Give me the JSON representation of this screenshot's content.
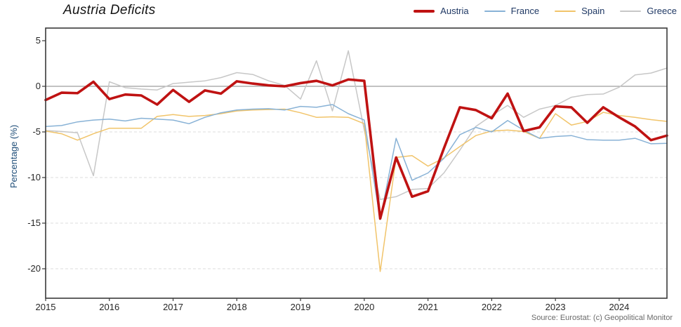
{
  "title": "Austria Deficits",
  "source": "Source: Eurostat: (c) Geopolitical Monitor",
  "y_axis": {
    "label": "Percentage (%)",
    "ticks": [
      5,
      0,
      -5,
      -10,
      -15,
      -20
    ]
  },
  "x_axis": {
    "ticks": [
      "2015",
      "2016",
      "2017",
      "2018",
      "2019",
      "2020",
      "2021",
      "2022",
      "2023",
      "2024"
    ]
  },
  "legend": [
    {
      "label": "Austria",
      "color": "#bf1212",
      "thickness": 4
    },
    {
      "label": "France",
      "color": "#88b2d6",
      "thickness": 2
    },
    {
      "label": "Spain",
      "color": "#f1c46a",
      "thickness": 2
    },
    {
      "label": "Greece",
      "color": "#c7c7c7",
      "thickness": 2
    }
  ],
  "chart_data": {
    "type": "line",
    "title": "Austria Deficits",
    "ylabel": "Percentage (%)",
    "x_start": "2015Q1",
    "x_end": "2024Q4",
    "x_frequency": "quarterly",
    "x_year_ticks": [
      "2015",
      "2016",
      "2017",
      "2018",
      "2019",
      "2020",
      "2021",
      "2022",
      "2023",
      "2024"
    ],
    "ylim": [
      -23.2,
      6.4
    ],
    "y_gridlines_dashed": [
      -5,
      -10,
      -15,
      -20
    ],
    "zero_line": true,
    "legend_position": "top-right",
    "series": [
      {
        "name": "Austria",
        "color": "#bf1212",
        "width": 3.6,
        "values": [
          -1.5,
          -0.7,
          -0.75,
          0.5,
          -1.4,
          -0.9,
          -1.0,
          -2.0,
          -0.4,
          -1.7,
          -0.45,
          -0.8,
          0.55,
          0.3,
          0.1,
          0.0,
          0.35,
          0.6,
          0.1,
          0.75,
          0.6,
          -14.5,
          -7.8,
          -12.1,
          -11.5,
          -6.8,
          -2.3,
          -2.6,
          -3.5,
          -0.8,
          -4.9,
          -4.5,
          -2.2,
          -2.3,
          -4.0,
          -2.3,
          -3.4,
          -4.4,
          -5.9,
          -5.4
        ]
      },
      {
        "name": "France",
        "color": "#88b2d6",
        "width": 1.5,
        "values": [
          -4.4,
          -4.3,
          -3.9,
          -3.7,
          -3.6,
          -3.8,
          -3.5,
          -3.6,
          -3.7,
          -4.1,
          -3.4,
          -2.9,
          -2.6,
          -2.5,
          -2.45,
          -2.6,
          -2.2,
          -2.3,
          -2.0,
          -3.0,
          -3.7,
          -14.6,
          -5.7,
          -10.3,
          -9.5,
          -7.9,
          -5.3,
          -4.5,
          -5.0,
          -3.75,
          -4.8,
          -5.7,
          -5.5,
          -5.4,
          -5.85,
          -5.9,
          -5.9,
          -5.7,
          -6.3,
          -6.25
        ]
      },
      {
        "name": "Spain",
        "color": "#f1c46a",
        "width": 1.5,
        "values": [
          -4.9,
          -5.2,
          -5.9,
          -5.2,
          -4.6,
          -4.6,
          -4.6,
          -3.3,
          -3.1,
          -3.3,
          -3.2,
          -3.0,
          -2.7,
          -2.6,
          -2.55,
          -2.5,
          -2.9,
          -3.4,
          -3.35,
          -3.4,
          -4.1,
          -20.3,
          -7.8,
          -7.6,
          -8.75,
          -7.85,
          -6.6,
          -5.4,
          -4.9,
          -4.8,
          -4.95,
          -5.7,
          -3.0,
          -4.25,
          -3.85,
          -2.85,
          -3.2,
          -3.4,
          -3.65,
          -3.85
        ]
      },
      {
        "name": "Greece",
        "color": "#c7c7c7",
        "width": 1.5,
        "values": [
          -4.85,
          -4.95,
          -5.1,
          -9.8,
          0.5,
          -0.15,
          -0.3,
          -0.4,
          0.3,
          0.45,
          0.6,
          0.95,
          1.5,
          1.3,
          0.6,
          0.1,
          -1.4,
          2.8,
          -2.7,
          3.9,
          -4.8,
          -12.4,
          -12.1,
          -11.3,
          -11.2,
          -9.5,
          -7.0,
          -4.4,
          -3.2,
          -2.1,
          -3.4,
          -2.5,
          -2.1,
          -1.2,
          -0.9,
          -0.85,
          -0.1,
          1.25,
          1.45,
          2.0
        ]
      }
    ]
  },
  "style": {
    "frame_color": "#3a3a3a",
    "zero_line_color": "#9e9e9e",
    "grid_color": "#dcdcdc",
    "legend_text_color": "#1f3864"
  }
}
